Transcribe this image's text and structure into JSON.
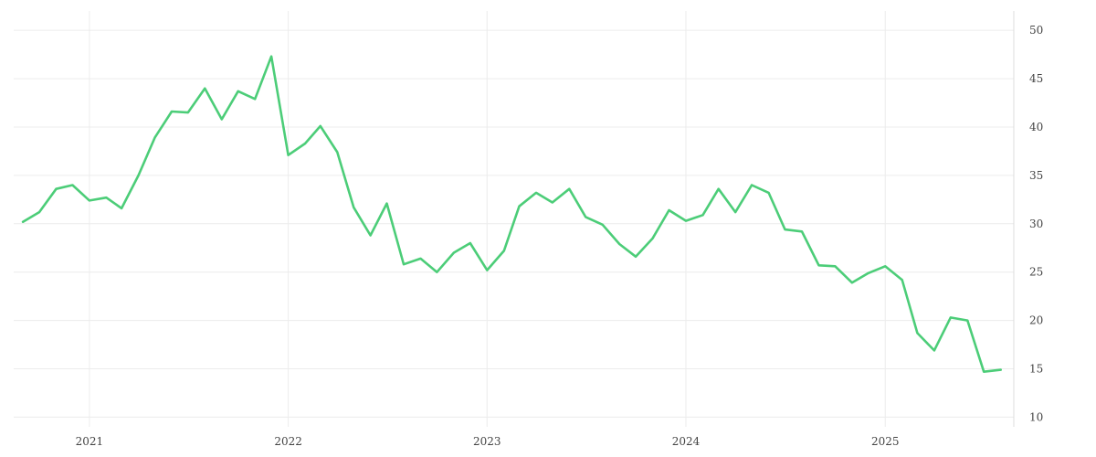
{
  "chart_data": {
    "type": "line",
    "title": "",
    "xlabel": "",
    "ylabel": "",
    "x_ticks": [
      "2021",
      "2022",
      "2023",
      "2024",
      "2025"
    ],
    "y_ticks": [
      10,
      15,
      20,
      25,
      30,
      35,
      40,
      45,
      50
    ],
    "ylim": [
      9,
      52
    ],
    "xlim": [
      "2020-08-15",
      "2025-08-25"
    ],
    "grid": true,
    "y_axis_side": "right",
    "line_color": "#4ccd78",
    "series": [
      {
        "x": [
          "2020-09-01",
          "2020-10-01",
          "2020-11-01",
          "2020-12-01",
          "2021-01-01",
          "2021-02-01",
          "2021-03-01",
          "2021-04-01",
          "2021-05-01",
          "2021-06-01",
          "2021-07-01",
          "2021-08-01",
          "2021-09-01",
          "2021-10-01",
          "2021-11-01",
          "2021-12-01",
          "2022-01-01",
          "2022-02-01",
          "2022-03-01",
          "2022-04-01",
          "2022-05-01",
          "2022-06-01",
          "2022-07-01",
          "2022-08-01",
          "2022-09-01",
          "2022-10-01",
          "2022-11-01",
          "2022-12-01",
          "2023-01-01",
          "2023-02-01",
          "2023-03-01",
          "2023-04-01",
          "2023-05-01",
          "2023-06-01",
          "2023-07-01",
          "2023-08-01",
          "2023-09-01",
          "2023-10-01",
          "2023-11-01",
          "2023-12-01",
          "2024-01-01",
          "2024-02-01",
          "2024-03-01",
          "2024-04-01",
          "2024-05-01",
          "2024-06-01",
          "2024-07-01",
          "2024-08-01",
          "2024-09-01",
          "2024-10-01",
          "2024-11-01",
          "2024-12-01",
          "2025-01-01",
          "2025-02-01",
          "2025-03-01",
          "2025-04-01",
          "2025-05-01",
          "2025-06-01",
          "2025-07-01",
          "2025-08-01"
        ],
        "values": [
          30.2,
          31.2,
          33.6,
          34.0,
          32.4,
          32.7,
          31.6,
          35.0,
          38.9,
          41.6,
          41.5,
          44.0,
          40.8,
          43.7,
          42.9,
          47.3,
          37.1,
          38.3,
          40.1,
          37.4,
          31.7,
          28.8,
          32.1,
          25.8,
          26.4,
          25.0,
          27.0,
          28.0,
          25.2,
          27.2,
          31.8,
          33.2,
          32.2,
          33.6,
          30.7,
          29.9,
          27.9,
          26.6,
          28.5,
          31.4,
          30.3,
          30.9,
          33.6,
          31.2,
          34.0,
          33.2,
          29.4,
          29.2,
          25.7,
          25.6,
          23.9,
          24.9,
          25.6,
          24.2,
          18.7,
          16.9,
          20.3,
          20.0,
          14.7,
          14.9
        ]
      }
    ]
  }
}
